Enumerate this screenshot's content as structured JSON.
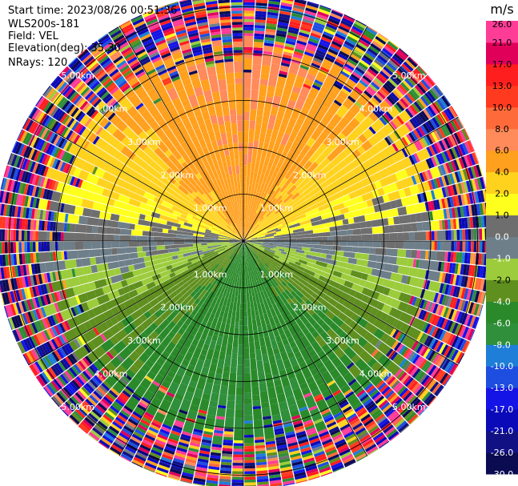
{
  "header": {
    "start_time": "Start time: 2023/08/26 00:51:36",
    "site": "WLS200s-181",
    "field": "Field: VEL",
    "elevation": "Elevation(deg): 35.30",
    "nrays": "NRays: 120"
  },
  "chart_data": {
    "type": "heatmap",
    "projection": "polar-ppi",
    "field": "VEL",
    "unit": "m/s",
    "n_rays": 120,
    "elevation_deg": 35.3,
    "range_rings_km": [
      1.0,
      2.0,
      3.0,
      4.0,
      5.0
    ],
    "ring_labels": [
      "1.00km",
      "2.00km",
      "3.00km",
      "4.00km",
      "5.00km"
    ],
    "max_range_km": 5.3,
    "colorbar": {
      "unit": "m/s",
      "levels": [
        -30.0,
        -26.0,
        -21.0,
        -17.0,
        -13.0,
        -10.0,
        -8.0,
        -6.0,
        -4.0,
        -2.0,
        -1.0,
        0.0,
        1.0,
        2.0,
        4.0,
        6.0,
        8.0,
        10.0,
        13.0,
        17.0,
        21.0,
        26.0
      ],
      "tick_labels": [
        "-30.0",
        "-26.0",
        "-21.0",
        "-17.0",
        "-13.0",
        "-10.0",
        "-8.0",
        "-6.0",
        "-4.0",
        "-2.0",
        "-1.0",
        "0.0",
        "1.0",
        "2.0",
        "4.0",
        "6.0",
        "8.0",
        "10.0",
        "13.0",
        "17.0",
        "21.0",
        "26.0"
      ],
      "colors": [
        "#0b0b52",
        "#111184",
        "#0a0ab8",
        "#1414e6",
        "#1e4ee0",
        "#1e7ed8",
        "#2f8f3a",
        "#2a8a2a",
        "#5f8f1e",
        "#9ccc3c",
        "#6e7f8a",
        "#6e6e6e",
        "#ffff1e",
        "#ffd21e",
        "#ffa01e",
        "#ff8a5a",
        "#ff6a3a",
        "#ff3a1e",
        "#ff1e1e",
        "#e0005a",
        "#ff3c96"
      ]
    },
    "velocity_pattern": {
      "description_free": true,
      "amplitude_mps": 5.0,
      "max_direction_deg": 0,
      "noise_range_km": 4.3
    }
  }
}
